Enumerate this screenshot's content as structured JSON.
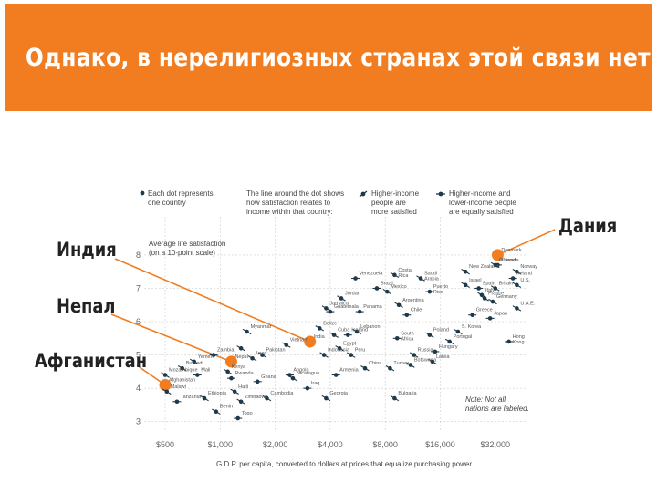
{
  "banner": {
    "title": "Однако, в нерелигиозных странах этой связи нет:"
  },
  "callouts": {
    "india": "Индия",
    "nepal": "Непал",
    "afghanistan": "Афганистан",
    "denmark": "Дания"
  },
  "colors": {
    "accent": "#f27d20",
    "dot": "#1e3a4a",
    "grid": "#cfcfcf"
  },
  "legend": {
    "dot_line1": "Each dot represents",
    "dot_line2": "one country",
    "line1": "The line around the dot shows",
    "line2": "how satisfaction relates to",
    "line3": "income within that country:",
    "higher1": "Higher-income",
    "higher2": "people are",
    "higher3": "more satisfied",
    "equal1": "Higher-income and",
    "equal2": "lower-income people",
    "equal3": "are equally satisfied"
  },
  "note": {
    "line1": "Note: Not all",
    "line2": "nations are labeled."
  },
  "chart_data": {
    "type": "scatter",
    "x_scale": "log",
    "xlabel": "G.D.P. per capita, converted to dollars at prices that equalize purchasing power.",
    "ylabel_line1": "Average life satisfaction",
    "ylabel_line2": "(on a 10-point scale)",
    "x_ticks": [
      500,
      1000,
      2000,
      4000,
      8000,
      16000,
      32000
    ],
    "x_tick_labels": [
      "$500",
      "$1,000",
      "$2,000",
      "$4,000",
      "$8,000",
      "$16,000",
      "$32,000"
    ],
    "y_ticks": [
      3,
      4,
      5,
      6,
      7,
      8
    ],
    "xlim": [
      350,
      48000
    ],
    "ylim": [
      2.8,
      8.6
    ],
    "grid": true,
    "highlighted": [
      "Afghanistan",
      "Nepal",
      "India",
      "Denmark"
    ],
    "points": [
      {
        "name": "Afghanistan",
        "x": 500,
        "y": 4.1
      },
      {
        "name": "Nepal",
        "x": 1150,
        "y": 4.8
      },
      {
        "name": "India",
        "x": 3100,
        "y": 5.4
      },
      {
        "name": "Denmark",
        "x": 33000,
        "y": 8.0
      },
      {
        "name": "Mozambique",
        "x": 500,
        "y": 4.4
      },
      {
        "name": "Malawi",
        "x": 510,
        "y": 3.9
      },
      {
        "name": "Tanzania",
        "x": 580,
        "y": 3.6
      },
      {
        "name": "Burundi",
        "x": 620,
        "y": 4.6
      },
      {
        "name": "Yemen",
        "x": 720,
        "y": 4.8
      },
      {
        "name": "Mali",
        "x": 750,
        "y": 4.4
      },
      {
        "name": "Ethiopia",
        "x": 820,
        "y": 3.7
      },
      {
        "name": "Benin",
        "x": 950,
        "y": 3.3
      },
      {
        "name": "Zambia",
        "x": 920,
        "y": 5.0
      },
      {
        "name": "Cambodia",
        "x": 1800,
        "y": 3.7
      },
      {
        "name": "Kenya",
        "x": 1100,
        "y": 4.5
      },
      {
        "name": "Rwanda",
        "x": 1150,
        "y": 4.3
      },
      {
        "name": "Haiti",
        "x": 1200,
        "y": 3.9
      },
      {
        "name": "Zimbabwe",
        "x": 1300,
        "y": 3.6
      },
      {
        "name": "Togo",
        "x": 1250,
        "y": 3.1
      },
      {
        "name": "Laos",
        "x": 1500,
        "y": 4.9
      },
      {
        "name": "Pakistan",
        "x": 1700,
        "y": 5.0
      },
      {
        "name": "Ghana",
        "x": 1600,
        "y": 4.2
      },
      {
        "name": "Bangladesh",
        "x": 1300,
        "y": 5.2
      },
      {
        "name": "Myanmar",
        "x": 1400,
        "y": 5.7
      },
      {
        "name": "Angola",
        "x": 2400,
        "y": 4.4
      },
      {
        "name": "Vietnam",
        "x": 2300,
        "y": 5.3
      },
      {
        "name": "Nicaragua",
        "x": 2500,
        "y": 4.3
      },
      {
        "name": "Iraq",
        "x": 3000,
        "y": 4.0
      },
      {
        "name": "Georgia",
        "x": 3800,
        "y": 3.7
      },
      {
        "name": "Belize",
        "x": 3500,
        "y": 5.8
      },
      {
        "name": "Guatemala",
        "x": 4000,
        "y": 6.3
      },
      {
        "name": "Jamaica",
        "x": 3800,
        "y": 6.4
      },
      {
        "name": "Indonesia",
        "x": 3700,
        "y": 5.0
      },
      {
        "name": "Armenia",
        "x": 4300,
        "y": 4.4
      },
      {
        "name": "Cuba",
        "x": 4200,
        "y": 5.6
      },
      {
        "name": "Egypt",
        "x": 4500,
        "y": 5.2
      },
      {
        "name": "Iceland",
        "x": 5000,
        "y": 5.6
      },
      {
        "name": "Peru",
        "x": 5200,
        "y": 5.0
      },
      {
        "name": "Jordan",
        "x": 4600,
        "y": 6.7
      },
      {
        "name": "Panama",
        "x": 5800,
        "y": 6.3
      },
      {
        "name": "Lebanon",
        "x": 5600,
        "y": 5.7
      },
      {
        "name": "China",
        "x": 6200,
        "y": 4.6
      },
      {
        "name": "Brazil",
        "x": 7200,
        "y": 7.0
      },
      {
        "name": "Mexico",
        "x": 8200,
        "y": 6.9
      },
      {
        "name": "Argentina",
        "x": 9500,
        "y": 6.5
      },
      {
        "name": "Chile",
        "x": 10500,
        "y": 6.2
      },
      {
        "name": "Turkey",
        "x": 8500,
        "y": 4.6
      },
      {
        "name": "Bulgaria",
        "x": 9000,
        "y": 3.7
      },
      {
        "name": "South Africa",
        "x": 9300,
        "y": 5.5
      },
      {
        "name": "Botswana",
        "x": 11000,
        "y": 4.7
      },
      {
        "name": "Russia",
        "x": 11500,
        "y": 5.0
      },
      {
        "name": "Venezuela",
        "x": 5500,
        "y": 7.3
      },
      {
        "name": "Costa Rica",
        "x": 9000,
        "y": 7.4
      },
      {
        "name": "Saudi Arabia",
        "x": 12500,
        "y": 7.3
      },
      {
        "name": "Puerto Rico",
        "x": 14000,
        "y": 6.9
      },
      {
        "name": "Poland",
        "x": 14000,
        "y": 5.6
      },
      {
        "name": "Portugal",
        "x": 18000,
        "y": 5.4
      },
      {
        "name": "Hungary",
        "x": 15000,
        "y": 5.1
      },
      {
        "name": "Latvia",
        "x": 14500,
        "y": 4.8
      },
      {
        "name": "S. Korea",
        "x": 20000,
        "y": 5.7
      },
      {
        "name": "Greece",
        "x": 24000,
        "y": 6.2
      },
      {
        "name": "Israel",
        "x": 22000,
        "y": 7.1
      },
      {
        "name": "New Zealand",
        "x": 22000,
        "y": 7.5
      },
      {
        "name": "Spain",
        "x": 26000,
        "y": 7.0
      },
      {
        "name": "Italy",
        "x": 27000,
        "y": 6.8
      },
      {
        "name": "France",
        "x": 28000,
        "y": 6.7
      },
      {
        "name": "Japan",
        "x": 30000,
        "y": 6.1
      },
      {
        "name": "Britain",
        "x": 32000,
        "y": 7.0
      },
      {
        "name": "Germany",
        "x": 31000,
        "y": 6.6
      },
      {
        "name": "Canada",
        "x": 33000,
        "y": 7.7
      },
      {
        "name": "Finland",
        "x": 32000,
        "y": 7.7
      },
      {
        "name": "Norway",
        "x": 42000,
        "y": 7.5
      },
      {
        "name": "Ireland",
        "x": 40000,
        "y": 7.3
      },
      {
        "name": "U.S.",
        "x": 42000,
        "y": 7.1
      },
      {
        "name": "U.A.E.",
        "x": 42000,
        "y": 6.4
      },
      {
        "name": "Hong Kong",
        "x": 38000,
        "y": 5.4
      }
    ],
    "labels": [
      {
        "text": "Afghanistan",
        "ref": "Afghanistan"
      },
      {
        "text": "Mozambique",
        "ref": "Mozambique"
      },
      {
        "text": "Burundi",
        "ref": "Burundi"
      },
      {
        "text": "Malawi",
        "ref": "Malawi"
      },
      {
        "text": "Tanzania",
        "ref": "Tanzania"
      },
      {
        "text": "Mali",
        "ref": "Mali"
      },
      {
        "text": "Ethiopia",
        "ref": "Ethiopia"
      },
      {
        "text": "Benin",
        "ref": "Benin"
      },
      {
        "text": "Yemen",
        "ref": "Yemen"
      },
      {
        "text": "Zambia",
        "ref": "Zambia"
      },
      {
        "text": "Kenya",
        "ref": "Kenya"
      },
      {
        "text": "Nepal",
        "ref": "Nepal"
      },
      {
        "text": "Rwanda",
        "ref": "Rwanda"
      },
      {
        "text": "Haiti",
        "ref": "Haiti"
      },
      {
        "text": "Zimbabwe",
        "ref": "Zimbabwe"
      },
      {
        "text": "Togo",
        "ref": "Togo"
      },
      {
        "text": "Laos",
        "ref": "Laos"
      },
      {
        "text": "Pakistan",
        "ref": "Pakistan"
      },
      {
        "text": "Ghana",
        "ref": "Ghana"
      },
      {
        "text": "Myanmar",
        "ref": "Myanmar"
      },
      {
        "text": "Angola",
        "ref": "Angola"
      },
      {
        "text": "Vietnam",
        "ref": "Vietnam"
      },
      {
        "text": "Nicaragua",
        "ref": "Nicaragua"
      },
      {
        "text": "Iraq",
        "ref": "Iraq"
      },
      {
        "text": "Georgia",
        "ref": "Georgia"
      },
      {
        "text": "Cambodia",
        "ref": "Cambodia"
      },
      {
        "text": "Belize",
        "ref": "Belize"
      },
      {
        "text": "India",
        "ref": "India"
      },
      {
        "text": "Guatemala",
        "ref": "Guatemala"
      },
      {
        "text": "Jamaica",
        "ref": "Jamaica"
      },
      {
        "text": "Indonesia",
        "ref": "Indonesia"
      },
      {
        "text": "Armenia",
        "ref": "Armenia"
      },
      {
        "text": "Cuba",
        "ref": "Cuba"
      },
      {
        "text": "Egypt",
        "ref": "Egypt"
      },
      {
        "text": "Iceland",
        "ref": "Iceland"
      },
      {
        "text": "Peru",
        "ref": "Peru"
      },
      {
        "text": "Jordan",
        "ref": "Jordan"
      },
      {
        "text": "Panama",
        "ref": "Panama"
      },
      {
        "text": "Lebanon",
        "ref": "Lebanon"
      },
      {
        "text": "China",
        "ref": "China"
      },
      {
        "text": "Brazil",
        "ref": "Brazil"
      },
      {
        "text": "Mexico",
        "ref": "Mexico"
      },
      {
        "text": "Argentina",
        "ref": "Argentina"
      },
      {
        "text": "Chile",
        "ref": "Chile"
      },
      {
        "text": "Turkey",
        "ref": "Turkey"
      },
      {
        "text": "Bulgaria",
        "ref": "Bulgaria"
      },
      {
        "text": "South",
        "ref": "South Africa"
      },
      {
        "text": "Africa",
        "ref": "South Africa"
      },
      {
        "text": "Botswana",
        "ref": "Botswana"
      },
      {
        "text": "Russia",
        "ref": "Russia"
      },
      {
        "text": "Venezuela",
        "ref": "Venezuela"
      },
      {
        "text": "Costa",
        "ref": "Costa Rica"
      },
      {
        "text": "Rica",
        "ref": "Costa Rica"
      },
      {
        "text": "Saudi",
        "ref": "Saudi Arabia"
      },
      {
        "text": "Arabia",
        "ref": "Saudi Arabia"
      },
      {
        "text": "Puerto",
        "ref": "Puerto Rico"
      },
      {
        "text": "Rico",
        "ref": "Puerto Rico"
      },
      {
        "text": "Poland",
        "ref": "Poland"
      },
      {
        "text": "Portugal",
        "ref": "Portugal"
      },
      {
        "text": "Hungary",
        "ref": "Hungary"
      },
      {
        "text": "Latvia",
        "ref": "Latvia"
      },
      {
        "text": "S. Korea",
        "ref": "S. Korea"
      },
      {
        "text": "Greece",
        "ref": "Greece"
      },
      {
        "text": "Israel",
        "ref": "Israel"
      },
      {
        "text": "New Zealand",
        "ref": "New Zealand"
      },
      {
        "text": "Spain",
        "ref": "Spain"
      },
      {
        "text": "Italy",
        "ref": "Italy"
      },
      {
        "text": "France",
        "ref": "France"
      },
      {
        "text": "Japan",
        "ref": "Japan"
      },
      {
        "text": "Britain",
        "ref": "Britain"
      },
      {
        "text": "Germany",
        "ref": "Germany"
      },
      {
        "text": "Canada",
        "ref": "Canada"
      },
      {
        "text": "Finland",
        "ref": "Finland"
      },
      {
        "text": "Denmark",
        "ref": "Denmark"
      },
      {
        "text": "Norway",
        "ref": "Norway"
      },
      {
        "text": "Ireland",
        "ref": "Ireland"
      },
      {
        "text": "U.S.",
        "ref": "U.S."
      },
      {
        "text": "U.A.E.",
        "ref": "U.A.E."
      },
      {
        "text": "Hong",
        "ref": "Hong Kong"
      },
      {
        "text": "Kong",
        "ref": "Hong Kong"
      }
    ]
  }
}
